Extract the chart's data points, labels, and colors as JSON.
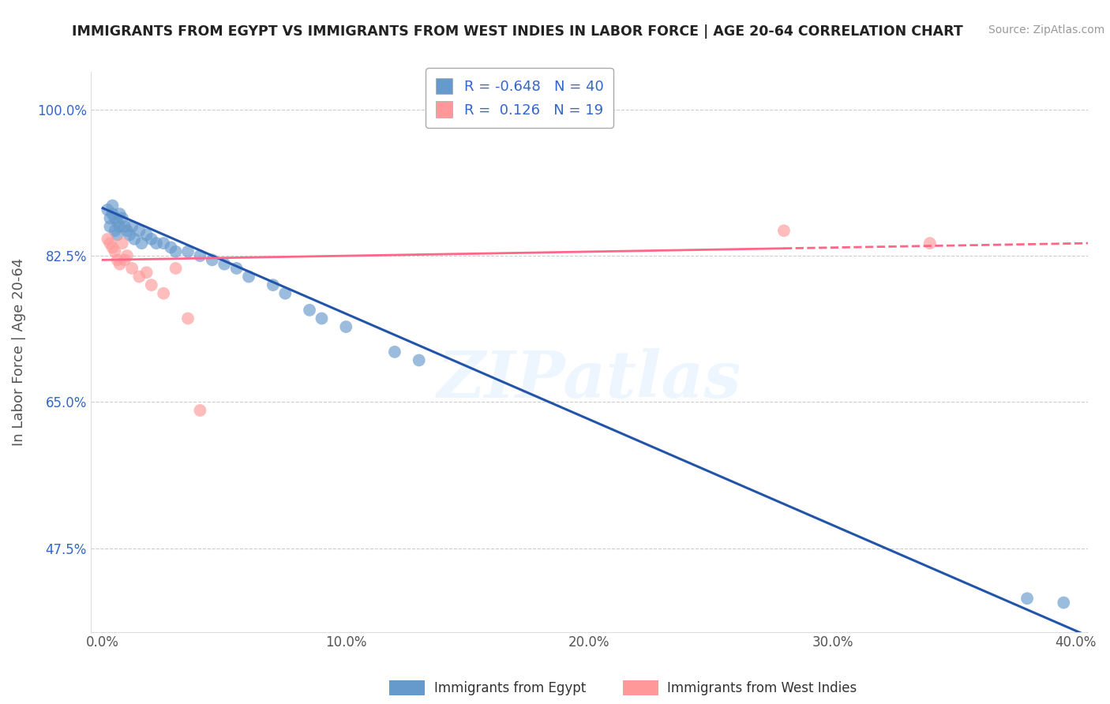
{
  "title": "IMMIGRANTS FROM EGYPT VS IMMIGRANTS FROM WEST INDIES IN LABOR FORCE | AGE 20-64 CORRELATION CHART",
  "source": "Source: ZipAtlas.com",
  "xlabel": "",
  "ylabel": "In Labor Force | Age 20-64",
  "xlim": [
    -0.005,
    0.405
  ],
  "ylim": [
    0.375,
    1.045
  ],
  "yticks": [
    0.475,
    0.65,
    0.825,
    1.0
  ],
  "ytick_labels": [
    "47.5%",
    "65.0%",
    "82.5%",
    "100.0%"
  ],
  "xticks": [
    0.0,
    0.1,
    0.2,
    0.3,
    0.4
  ],
  "xtick_labels": [
    "0.0%",
    "10.0%",
    "20.0%",
    "30.0%",
    "40.0%"
  ],
  "watermark": "ZIPatlas",
  "blue_R": -0.648,
  "blue_N": 40,
  "pink_R": 0.126,
  "pink_N": 19,
  "blue_color": "#6699CC",
  "pink_color": "#FF9999",
  "blue_line_color": "#2255AA",
  "pink_line_color": "#FF6688",
  "egypt_scatter_x": [
    0.002,
    0.003,
    0.003,
    0.004,
    0.004,
    0.005,
    0.005,
    0.006,
    0.006,
    0.007,
    0.007,
    0.008,
    0.009,
    0.01,
    0.011,
    0.012,
    0.013,
    0.015,
    0.016,
    0.018,
    0.02,
    0.022,
    0.025,
    0.028,
    0.03,
    0.035,
    0.04,
    0.045,
    0.05,
    0.055,
    0.06,
    0.07,
    0.075,
    0.085,
    0.09,
    0.1,
    0.12,
    0.13,
    0.38,
    0.395
  ],
  "egypt_scatter_y": [
    0.88,
    0.87,
    0.86,
    0.885,
    0.875,
    0.87,
    0.855,
    0.865,
    0.85,
    0.875,
    0.86,
    0.87,
    0.86,
    0.855,
    0.85,
    0.86,
    0.845,
    0.855,
    0.84,
    0.85,
    0.845,
    0.84,
    0.84,
    0.835,
    0.83,
    0.83,
    0.825,
    0.82,
    0.815,
    0.81,
    0.8,
    0.79,
    0.78,
    0.76,
    0.75,
    0.74,
    0.71,
    0.7,
    0.415,
    0.41
  ],
  "westindies_scatter_x": [
    0.002,
    0.003,
    0.004,
    0.005,
    0.006,
    0.007,
    0.008,
    0.009,
    0.01,
    0.012,
    0.015,
    0.018,
    0.02,
    0.025,
    0.03,
    0.035,
    0.04,
    0.28,
    0.34
  ],
  "westindies_scatter_y": [
    0.845,
    0.84,
    0.835,
    0.83,
    0.82,
    0.815,
    0.84,
    0.82,
    0.825,
    0.81,
    0.8,
    0.805,
    0.79,
    0.78,
    0.81,
    0.75,
    0.64,
    0.855,
    0.84
  ],
  "legend_label_blue": "Immigrants from Egypt",
  "legend_label_pink": "Immigrants from West Indies",
  "background_color": "#FFFFFF",
  "grid_color": "#CCCCCC",
  "blue_trend_x": [
    0.0,
    0.405
  ],
  "blue_trend_y": [
    0.882,
    0.37
  ],
  "pink_trend_x": [
    0.0,
    0.405
  ],
  "pink_trend_y": [
    0.82,
    0.84
  ]
}
